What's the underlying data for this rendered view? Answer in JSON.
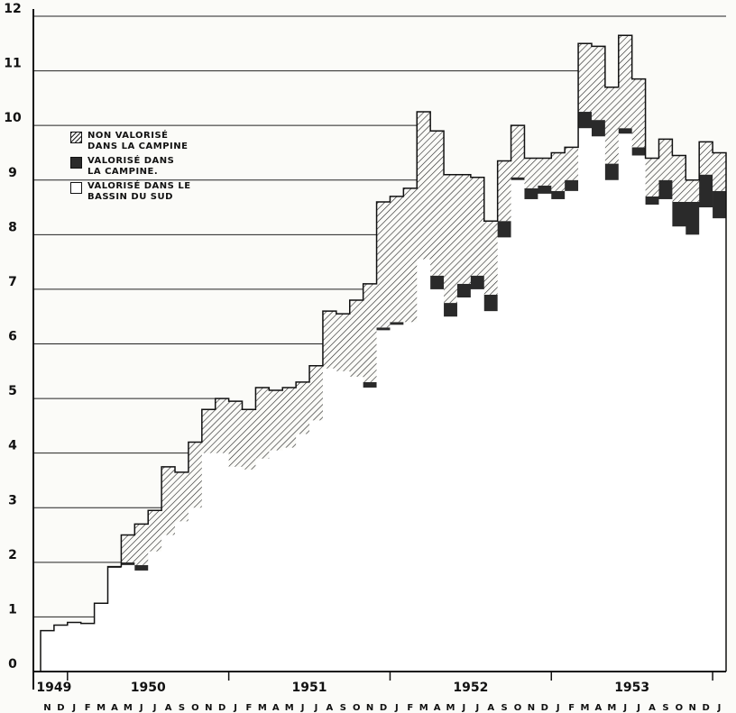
{
  "chart_data": {
    "type": "stacked-step",
    "categories": [
      "N",
      "D",
      "J",
      "F",
      "M",
      "A",
      "M",
      "J",
      "J",
      "A",
      "S",
      "O",
      "N",
      "D",
      "J",
      "F",
      "M",
      "A",
      "M",
      "J",
      "J",
      "A",
      "S",
      "O",
      "N",
      "D",
      "J",
      "F",
      "M",
      "A",
      "M",
      "J",
      "J",
      "A",
      "S",
      "O",
      "N",
      "D",
      "J",
      "F",
      "M",
      "A",
      "M",
      "J",
      "J",
      "A",
      "S",
      "O",
      "N",
      "D",
      "J"
    ],
    "year_groups": [
      {
        "label": "1949",
        "months": 2
      },
      {
        "label": "1950",
        "months": 12
      },
      {
        "label": "1951",
        "months": 12
      },
      {
        "label": "1952",
        "months": 12
      },
      {
        "label": "1953",
        "months": 12
      }
    ],
    "series": [
      {
        "name": "VALORISÉ DANS LE\nBASSIN DU SUD",
        "color": "#ffffff",
        "values": [
          0.75,
          0.85,
          0.9,
          0.88,
          1.25,
          1.9,
          1.95,
          1.85,
          2.2,
          2.5,
          2.75,
          3.0,
          4.0,
          4.0,
          3.75,
          3.7,
          3.9,
          4.05,
          4.1,
          4.35,
          4.6,
          5.55,
          5.5,
          5.4,
          5.2,
          6.25,
          6.35,
          6.4,
          7.55,
          7.0,
          6.5,
          6.85,
          7.0,
          6.6,
          7.95,
          9.0,
          8.65,
          8.75,
          8.65,
          8.8,
          9.95,
          9.8,
          9.0,
          9.85,
          9.45,
          8.55,
          8.65,
          8.15,
          8.0,
          8.5,
          8.3
        ]
      },
      {
        "name": "VALORISÉ DANS\nLA CAMPINE.",
        "color": "#2a2a2a",
        "values": [
          0,
          0,
          0,
          0,
          0,
          0.02,
          0.05,
          0.1,
          0,
          0,
          0,
          0,
          0,
          0,
          0,
          0,
          0,
          0,
          0,
          0,
          0,
          0,
          0,
          0,
          0.1,
          0.05,
          0.05,
          0,
          0,
          0.25,
          0.25,
          0.25,
          0.25,
          0.3,
          0.3,
          0.05,
          0.2,
          0.15,
          0.15,
          0.2,
          0.3,
          0.3,
          0.3,
          0.1,
          0.15,
          0.15,
          0.35,
          0.45,
          0.6,
          0.6,
          0.5
        ]
      },
      {
        "name": "NON VALORISÉ\nDANS LA CAMPINE",
        "color": "hatch",
        "values": [
          0,
          0,
          0,
          0,
          0,
          0,
          0.5,
          0.75,
          0.75,
          1.25,
          0.9,
          1.2,
          0.8,
          1.0,
          1.2,
          1.1,
          1.3,
          1.1,
          1.1,
          0.95,
          1.0,
          1.05,
          1.05,
          1.4,
          1.8,
          2.3,
          2.3,
          2.45,
          2.7,
          2.65,
          2.35,
          2.0,
          1.8,
          1.35,
          1.1,
          0.95,
          0.55,
          0.5,
          0.7,
          0.6,
          1.25,
          1.35,
          1.4,
          1.7,
          1.25,
          0.7,
          0.75,
          0.85,
          0.4,
          0.6,
          0.7
        ]
      }
    ],
    "ylim": [
      0,
      12
    ],
    "yticks": [
      0,
      1,
      2,
      3,
      4,
      5,
      6,
      7,
      8,
      9,
      10,
      11,
      12
    ],
    "grid": true
  }
}
